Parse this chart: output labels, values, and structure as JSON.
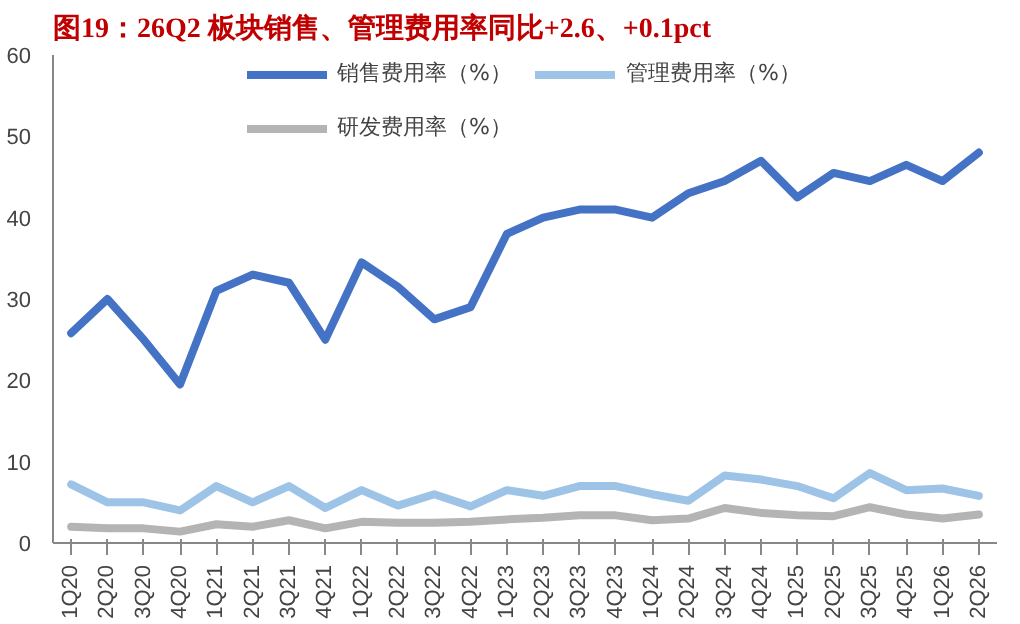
{
  "chart_data": {
    "type": "line",
    "title": "图19：26Q2 板块销售、管理费用率同比+2.6、+0.1pct",
    "categories": [
      "1Q20",
      "2Q20",
      "3Q20",
      "4Q20",
      "1Q21",
      "2Q21",
      "3Q21",
      "4Q21",
      "1Q22",
      "2Q22",
      "3Q22",
      "4Q22",
      "1Q23",
      "2Q23",
      "3Q23",
      "4Q23",
      "1Q24",
      "2Q24",
      "3Q24",
      "4Q24",
      "1Q25",
      "2Q25",
      "3Q25",
      "4Q25",
      "1Q26",
      "2Q26"
    ],
    "series": [
      {
        "name": "销售费用率（%）",
        "color": "#4472c4",
        "values": [
          25.8,
          30,
          25,
          19.5,
          31,
          33,
          32,
          25,
          34.5,
          31.5,
          27.5,
          29,
          38,
          40,
          41,
          41,
          40,
          43,
          44.5,
          47,
          42.5,
          45.5,
          44.5,
          46.5,
          44.5,
          48
        ]
      },
      {
        "name": "管理费用率（%）",
        "color": "#9dc3e6",
        "values": [
          7.2,
          5,
          5,
          4,
          7,
          5,
          7,
          4.3,
          6.5,
          4.6,
          6,
          4.5,
          6.5,
          5.8,
          7,
          7,
          6,
          5.2,
          8.3,
          7.8,
          7,
          5.5,
          8.6,
          6.5,
          6.7,
          5.8
        ]
      },
      {
        "name": "研发费用率（%）",
        "color": "#b4b4b4",
        "values": [
          2,
          1.8,
          1.8,
          1.4,
          2.3,
          2,
          2.8,
          1.8,
          2.6,
          2.5,
          2.5,
          2.6,
          2.9,
          3.1,
          3.4,
          3.4,
          2.8,
          3,
          4.3,
          3.7,
          3.4,
          3.3,
          4.4,
          3.5,
          3,
          3.5
        ]
      }
    ],
    "ylim": [
      0,
      60
    ],
    "yticks": [
      0,
      10,
      20,
      30,
      40,
      50,
      60
    ],
    "grid": false,
    "legend": "top",
    "marker": "none",
    "line_style": "solid"
  }
}
